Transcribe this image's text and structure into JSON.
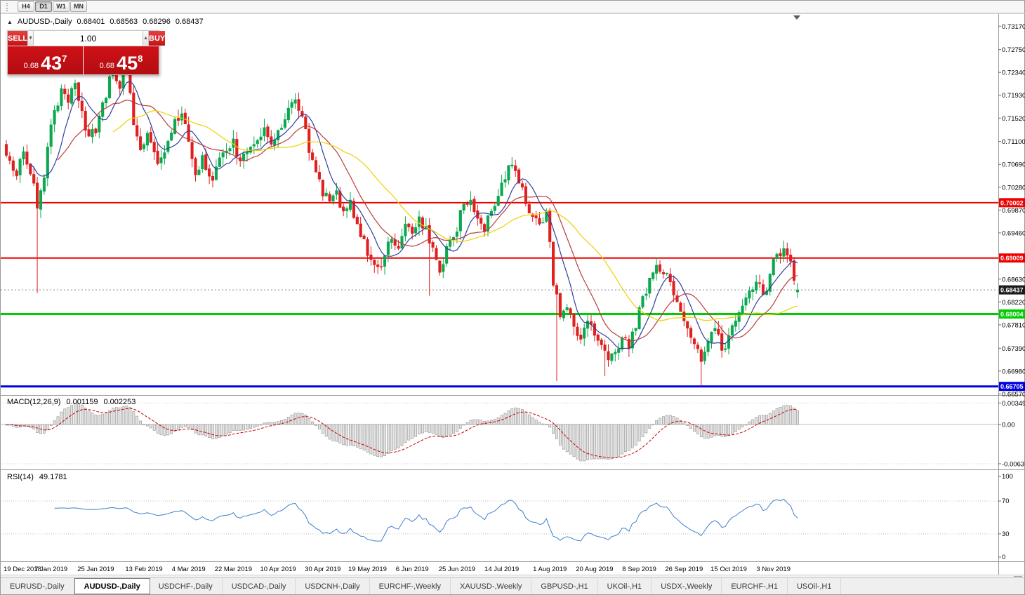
{
  "window": {
    "timeframes": [
      {
        "label": "H4",
        "active": false
      },
      {
        "label": "D1",
        "active": true
      },
      {
        "label": "W1",
        "active": false
      },
      {
        "label": "MN",
        "active": false
      }
    ]
  },
  "chart": {
    "title": {
      "marker": "▲",
      "symbol": "AUDUSD-,Daily",
      "open": "0.68401",
      "high": "0.68563",
      "low": "0.68296",
      "close": "0.68437"
    },
    "trade": {
      "sell_label": "SELL",
      "buy_label": "BUY",
      "volume": "1.00",
      "volume_down_icon": "▼",
      "volume_up_icon": "▲",
      "sell_price": {
        "prefix": "0.68",
        "big": "43",
        "sup": "7"
      },
      "buy_price": {
        "prefix": "0.68",
        "big": "45",
        "sup": "8"
      }
    }
  },
  "panels": {
    "macd": {
      "name": "MACD(12,26,9)",
      "value_main": "0.001159",
      "value_signal": "0.002253"
    },
    "rsi": {
      "name": "RSI(14)",
      "value": "49.1781"
    }
  },
  "axes": {
    "price_axis": [
      "0.73170",
      "0.72750",
      "0.72340",
      "0.71930",
      "0.71520",
      "0.71100",
      "0.70690",
      "0.70280",
      "0.69870",
      "0.69460",
      "0.68630",
      "0.68220",
      "0.67810",
      "0.67390",
      "0.66980",
      "0.66570"
    ],
    "macd_axis": [
      "0.00349",
      "0.00",
      "-0.00637"
    ],
    "rsi_axis": [
      "100",
      "70",
      "30",
      "0"
    ],
    "dates": [
      "19 Dec 2018",
      "7 Jan 2019",
      "25 Jan 2019",
      "13 Feb 2019",
      "4 Mar 2019",
      "22 Mar 2019",
      "10 Apr 2019",
      "30 Apr 2019",
      "19 May 2019",
      "6 Jun 2019",
      "25 Jun 2019",
      "14 Jul 2019",
      "1 Aug 2019",
      "20 Aug 2019",
      "8 Sep 2019",
      "26 Sep 2019",
      "15 Oct 2019",
      "3 Nov 2019"
    ],
    "date_indices": [
      0,
      13,
      26,
      40,
      53,
      66,
      79,
      92,
      105,
      118,
      131,
      144,
      158,
      171,
      184,
      197,
      210,
      223
    ]
  },
  "levels": [
    {
      "value": 0.70002,
      "label": "0.70002",
      "color": "#ee0000",
      "width": 2
    },
    {
      "value": 0.69009,
      "label": "0.69009",
      "color": "#ee0000",
      "width": 2
    },
    {
      "value": 0.68004,
      "label": "0.68004",
      "color": "#00cc00",
      "width": 3
    },
    {
      "value": 0.66705,
      "label": "0.66705",
      "color": "#0000e0",
      "width": 3
    }
  ],
  "current_price": {
    "value": 0.68437,
    "label": "0.68437"
  },
  "tabs": [
    {
      "label": "EURUSD-,Daily",
      "active": false
    },
    {
      "label": "AUDUSD-,Daily",
      "active": true
    },
    {
      "label": "USDCHF-,Daily",
      "active": false
    },
    {
      "label": "USDCAD-,Daily",
      "active": false
    },
    {
      "label": "USDCNH-,Daily",
      "active": false
    },
    {
      "label": "EURCHF-,Weekly",
      "active": false
    },
    {
      "label": "XAUUSD-,Weekly",
      "active": false
    },
    {
      "label": "GBPUSD-,H1",
      "active": false
    },
    {
      "label": "UKOil-,H1",
      "active": false
    },
    {
      "label": "USDX-,Weekly",
      "active": false
    },
    {
      "label": "EURCHF-,H1",
      "active": false
    },
    {
      "label": "USOil-,H1",
      "active": false
    }
  ],
  "colors": {
    "bull": "#0aa84f",
    "bear": "#e01f1f",
    "ma_fast": "#2f3e9e",
    "ma_mid": "#bc3c3c",
    "ma_slow": "#f0d000",
    "macd_hist_fill": "#e3e3e3",
    "macd_hist_stroke": "#8f8f8f",
    "macd_signal": "#cc0000",
    "rsi_line": "#3f7fce",
    "price_label_bg": "#1a1a1a",
    "grid": "#c8c8c8"
  },
  "chart_data": {
    "type": "candlestick",
    "symbol": "AUDUSD",
    "timeframe": "Daily",
    "candle_count": 231,
    "seed": 11,
    "y_axis_range": [
      0.6655,
      0.734
    ],
    "last_candle": {
      "open": 0.68401,
      "high": 0.68563,
      "low": 0.68296,
      "close": 0.68437
    },
    "anchor_closes": [
      [
        0,
        0.7085
      ],
      [
        3,
        0.7048
      ],
      [
        5,
        0.7092
      ],
      [
        8,
        0.7035
      ],
      [
        9,
        0.699
      ],
      [
        11,
        0.7045
      ],
      [
        13,
        0.714
      ],
      [
        16,
        0.7205
      ],
      [
        18,
        0.718
      ],
      [
        20,
        0.7215
      ],
      [
        23,
        0.713
      ],
      [
        26,
        0.7125
      ],
      [
        28,
        0.718
      ],
      [
        31,
        0.7235
      ],
      [
        33,
        0.7205
      ],
      [
        35,
        0.724
      ],
      [
        37,
        0.714
      ],
      [
        39,
        0.7095
      ],
      [
        41,
        0.7125
      ],
      [
        44,
        0.707
      ],
      [
        46,
        0.709
      ],
      [
        49,
        0.715
      ],
      [
        51,
        0.716
      ],
      [
        53,
        0.711
      ],
      [
        55,
        0.705
      ],
      [
        57,
        0.7085
      ],
      [
        60,
        0.704
      ],
      [
        63,
        0.709
      ],
      [
        66,
        0.7115
      ],
      [
        68,
        0.7075
      ],
      [
        71,
        0.71
      ],
      [
        75,
        0.7135
      ],
      [
        77,
        0.7105
      ],
      [
        79,
        0.713
      ],
      [
        82,
        0.717
      ],
      [
        84,
        0.7185
      ],
      [
        86,
        0.7155
      ],
      [
        88,
        0.709
      ],
      [
        90,
        0.7055
      ],
      [
        92,
        0.7012
      ],
      [
        94,
        0.7003
      ],
      [
        96,
        0.7022
      ],
      [
        98,
        0.6985
      ],
      [
        100,
        0.7005
      ],
      [
        102,
        0.6962
      ],
      [
        104,
        0.6935
      ],
      [
        106,
        0.6898
      ],
      [
        108,
        0.6885
      ],
      [
        110,
        0.6905
      ],
      [
        112,
        0.6935
      ],
      [
        114,
        0.6918
      ],
      [
        116,
        0.6962
      ],
      [
        118,
        0.6945
      ],
      [
        120,
        0.6975
      ],
      [
        122,
        0.6958
      ],
      [
        124,
        0.692
      ],
      [
        126,
        0.6875
      ],
      [
        128,
        0.6922
      ],
      [
        130,
        0.6938
      ],
      [
        133,
        0.6998
      ],
      [
        135,
        0.7005
      ],
      [
        137,
        0.6972
      ],
      [
        139,
        0.6948
      ],
      [
        141,
        0.6985
      ],
      [
        143,
        0.7012
      ],
      [
        145,
        0.7042
      ],
      [
        147,
        0.7068
      ],
      [
        149,
        0.7035
      ],
      [
        151,
        0.6998
      ],
      [
        153,
        0.6975
      ],
      [
        155,
        0.6962
      ],
      [
        157,
        0.6985
      ],
      [
        158,
        0.693
      ],
      [
        159,
        0.6852
      ],
      [
        161,
        0.6795
      ],
      [
        163,
        0.6812
      ],
      [
        165,
        0.6778
      ],
      [
        167,
        0.6755
      ],
      [
        169,
        0.6788
      ],
      [
        171,
        0.6762
      ],
      [
        173,
        0.6745
      ],
      [
        175,
        0.6718
      ],
      [
        177,
        0.6732
      ],
      [
        179,
        0.6758
      ],
      [
        181,
        0.6738
      ],
      [
        183,
        0.6775
      ],
      [
        185,
        0.6832
      ],
      [
        187,
        0.6865
      ],
      [
        189,
        0.6888
      ],
      [
        191,
        0.6872
      ],
      [
        193,
        0.6858
      ],
      [
        195,
        0.6822
      ],
      [
        197,
        0.6788
      ],
      [
        199,
        0.6758
      ],
      [
        201,
        0.6738
      ],
      [
        202,
        0.6715
      ],
      [
        204,
        0.6752
      ],
      [
        206,
        0.6775
      ],
      [
        208,
        0.6735
      ],
      [
        210,
        0.6762
      ],
      [
        212,
        0.6788
      ],
      [
        214,
        0.6815
      ],
      [
        216,
        0.6842
      ],
      [
        218,
        0.6858
      ],
      [
        220,
        0.6835
      ],
      [
        222,
        0.6872
      ],
      [
        224,
        0.6908
      ],
      [
        226,
        0.6918
      ],
      [
        228,
        0.6895
      ],
      [
        230,
        0.68437
      ]
    ],
    "spikes": [
      {
        "i": 9,
        "low": 0.6838
      },
      {
        "i": 123,
        "low": 0.6833
      },
      {
        "i": 147,
        "high": 0.7082
      },
      {
        "i": 160,
        "low": 0.668
      },
      {
        "i": 174,
        "low": 0.6689
      },
      {
        "i": 202,
        "low": 0.6671
      },
      {
        "i": 226,
        "high": 0.6932
      }
    ],
    "moving_averages": [
      {
        "period": 8,
        "color_key": "ma_fast"
      },
      {
        "period": 16,
        "color_key": "ma_mid"
      },
      {
        "period": 32,
        "color_key": "ma_slow"
      }
    ],
    "indicators": [
      {
        "name": "MACD",
        "params": [
          12,
          26,
          9
        ],
        "current": [
          0.001159,
          0.002253
        ],
        "axis_range": [
          -0.00751,
          0.00444
        ]
      },
      {
        "name": "RSI",
        "params": [
          14
        ],
        "current": 49.1781,
        "levels": [
          30,
          70
        ],
        "axis_range": [
          0,
          100
        ]
      }
    ]
  }
}
